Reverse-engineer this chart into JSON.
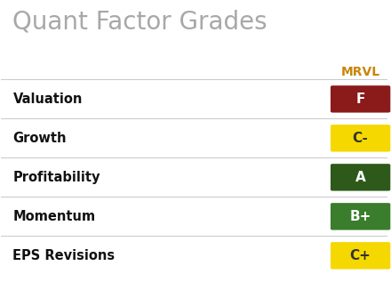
{
  "title": "Quant Factor Grades",
  "title_color": "#a8a8a8",
  "column_header": "MRVL",
  "column_header_color": "#c8860a",
  "background_color": "#ffffff",
  "rows": [
    {
      "label": "Valuation",
      "grade": "F",
      "box_color": "#8B1A1A",
      "text_color": "#ffffff"
    },
    {
      "label": "Growth",
      "grade": "C-",
      "box_color": "#f5d800",
      "text_color": "#333333"
    },
    {
      "label": "Profitability",
      "grade": "A",
      "box_color": "#2d5a1b",
      "text_color": "#ffffff"
    },
    {
      "label": "Momentum",
      "grade": "B+",
      "box_color": "#3a7d2c",
      "text_color": "#ffffff"
    },
    {
      "label": "EPS Revisions",
      "grade": "C+",
      "box_color": "#f5d800",
      "text_color": "#333333"
    }
  ],
  "figsize": [
    4.4,
    3.17
  ],
  "dpi": 100
}
